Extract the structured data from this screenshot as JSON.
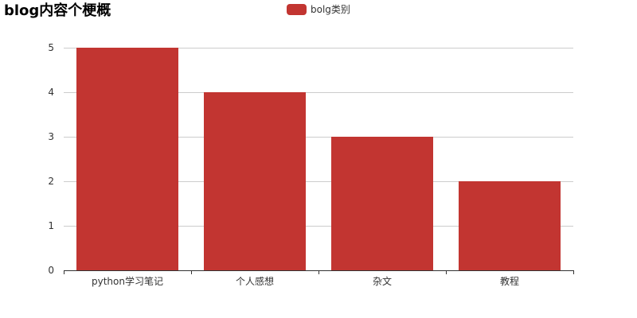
{
  "chart_data": {
    "type": "bar",
    "title": "blog内容个梗概",
    "categories": [
      "python学习笔记",
      "个人感想",
      "杂文",
      "教程"
    ],
    "series": [
      {
        "name": "bolg类别",
        "values": [
          5,
          4,
          3,
          2
        ],
        "color": "#c23531"
      }
    ],
    "yticks": [
      "0",
      "1",
      "2",
      "3",
      "4",
      "5"
    ],
    "ylim": [
      0,
      5
    ],
    "grid": true,
    "legend_position": "top-center"
  }
}
